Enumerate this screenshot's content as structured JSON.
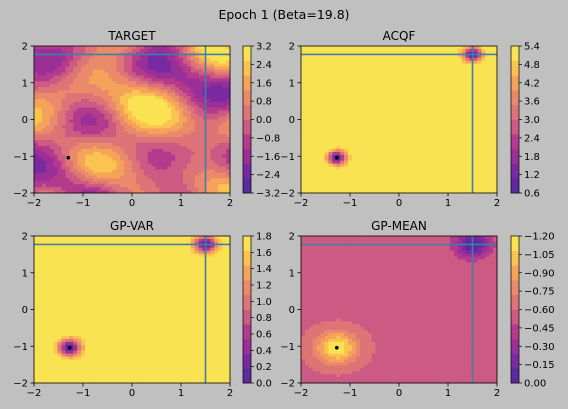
{
  "suptitle": "Epoch 1 (Beta=19.8)",
  "palette": [
    "#5b2a9e",
    "#7a2aa0",
    "#9b2f98",
    "#b43a8d",
    "#cc5a82",
    "#dd7477",
    "#ea8a6b",
    "#f5a35b",
    "#fbc451",
    "#f9e352"
  ],
  "line_color": "#3f7fa6",
  "chart_data": [
    {
      "type": "heatmap",
      "title": "TARGET",
      "xlim": [
        -2,
        2
      ],
      "ylim": [
        -2,
        2
      ],
      "xticks": [
        "−2",
        "−1",
        "0",
        "1",
        "2"
      ],
      "yticks": [
        "−2",
        "−1",
        "0",
        "1",
        "2"
      ],
      "colorbar_ticks": [
        "−3.2",
        "−2.4",
        "−1.6",
        "−0.8",
        "0.0",
        "0.8",
        "1.6",
        "2.4",
        "3.2"
      ],
      "crosshair": {
        "x": 1.5,
        "y": 1.77
      },
      "marker": {
        "x": -1.3,
        "y": -1.04
      }
    },
    {
      "type": "heatmap",
      "title": "ACQF",
      "xlim": [
        -2,
        2
      ],
      "ylim": [
        -2,
        2
      ],
      "xticks": [
        "−2",
        "−1",
        "0",
        "1",
        "2"
      ],
      "yticks": [
        "−2",
        "−1",
        "0",
        "1",
        "2"
      ],
      "colorbar_ticks": [
        "0.6",
        "1.2",
        "1.8",
        "2.4",
        "3.0",
        "3.6",
        "4.2",
        "4.8",
        "5.4"
      ],
      "crosshair": {
        "x": 1.5,
        "y": 1.77
      },
      "marker": {
        "x": -1.27,
        "y": -1.04
      }
    },
    {
      "type": "heatmap",
      "title": "GP-VAR",
      "xlim": [
        -2,
        2
      ],
      "ylim": [
        -2,
        2
      ],
      "xticks": [
        "−2",
        "−1",
        "0",
        "1",
        "2"
      ],
      "yticks": [
        "−2",
        "−1",
        "0",
        "1",
        "2"
      ],
      "colorbar_ticks": [
        "0.0",
        "0.2",
        "0.4",
        "0.6",
        "0.8",
        "1.0",
        "1.2",
        "1.4",
        "1.6",
        "1.8"
      ],
      "crosshair": {
        "x": 1.5,
        "y": 1.77
      },
      "marker": {
        "x": -1.27,
        "y": -1.04
      }
    },
    {
      "type": "heatmap",
      "title": "GP-MEAN",
      "xlim": [
        -2,
        2
      ],
      "ylim": [
        -2,
        2
      ],
      "xticks": [
        "−2",
        "−1",
        "0",
        "1",
        "2"
      ],
      "yticks": [
        "−2",
        "−1",
        "0",
        "1",
        "2"
      ],
      "colorbar_ticks": [
        "0.00",
        "−0.15",
        "−0.30",
        "−0.45",
        "−0.60",
        "−0.75",
        "−0.90",
        "−1.05",
        "−1.20"
      ],
      "crosshair": {
        "x": 1.5,
        "y": 1.77
      },
      "marker": {
        "x": -1.27,
        "y": -1.04
      }
    }
  ]
}
